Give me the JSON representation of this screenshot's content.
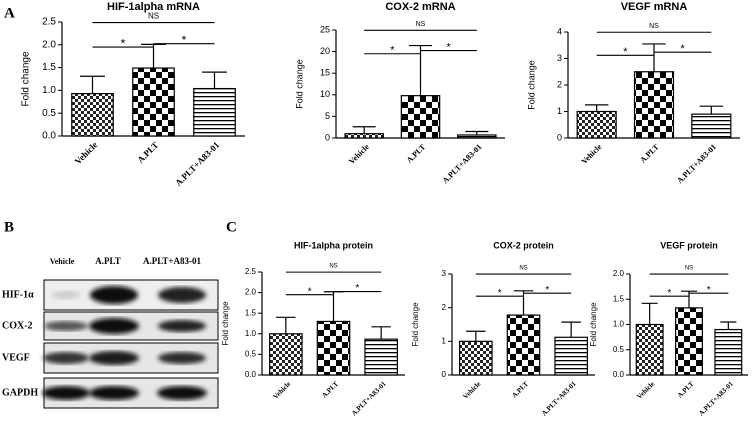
{
  "panels": {
    "a": "A",
    "b": "B",
    "c": "C"
  },
  "blot": {
    "lanes": [
      "Vehicle",
      "A.PLT",
      "A.PLT+A83-01"
    ],
    "proteins": [
      "HIF-1α",
      "COX-2",
      "VEGF",
      "GAPDH"
    ]
  },
  "chart_data": [
    {
      "type": "bar",
      "title": "HIF-1alpha mRNA",
      "ylabel": "Fold change",
      "categories": [
        "Vehicle",
        "A.PLT",
        "A.PLT+A83-01"
      ],
      "values": [
        0.93,
        1.49,
        1.04
      ],
      "errors": [
        0.38,
        0.52,
        0.36
      ],
      "ylim": [
        0,
        2.5
      ],
      "yticks": [
        {
          "value": 0,
          "label": "0.0"
        },
        0.5,
        {
          "value": 1,
          "label": "1.0"
        },
        1.5,
        {
          "value": 2,
          "label": "2.0"
        },
        2.5
      ],
      "annotations": [
        "*",
        "*",
        "NS"
      ]
    },
    {
      "type": "bar",
      "title": "COX-2 mRNA",
      "ylabel": "Fold change",
      "categories": [
        "Vehicle",
        "A.PLT",
        "A.PLT+A83-01"
      ],
      "values": [
        1.0,
        9.8,
        0.7
      ],
      "errors": [
        1.6,
        11.6,
        0.8
      ],
      "ylim": [
        0,
        25
      ],
      "yticks": [
        0,
        5,
        10,
        15,
        20,
        25
      ],
      "annotations": [
        "*",
        "*",
        "NS"
      ]
    },
    {
      "type": "bar",
      "title": "VEGF mRNA",
      "ylabel": "Fold change",
      "categories": [
        "Vehicle",
        "A.PLT",
        "A.PLT+A83-01"
      ],
      "values": [
        1.0,
        2.5,
        0.9
      ],
      "errors": [
        0.25,
        1.05,
        0.3
      ],
      "ylim": [
        0,
        4
      ],
      "yticks": [
        0,
        1,
        2,
        3,
        4
      ],
      "annotations": [
        "*",
        "*",
        "NS"
      ]
    },
    {
      "type": "bar",
      "title": "HIF-1alpha protein",
      "ylabel": "Fold change",
      "categories": [
        "Vehicle",
        "A.PLT",
        "A.PLT+A83-01"
      ],
      "values": [
        1.0,
        1.3,
        0.87
      ],
      "errors": [
        0.4,
        0.72,
        0.3
      ],
      "ylim": [
        0,
        2.5
      ],
      "yticks": [
        {
          "value": 0,
          "label": "0.0"
        },
        0.5,
        {
          "value": 1,
          "label": "1.0"
        },
        1.5,
        {
          "value": 2,
          "label": "2.0"
        },
        2.5
      ],
      "annotations": [
        "*",
        "*",
        "NS"
      ]
    },
    {
      "type": "bar",
      "title": "COX-2 protein",
      "ylabel": "Fold change",
      "categories": [
        "Vehicle",
        "A.PLT",
        "A.PLT+A83-01"
      ],
      "values": [
        1.0,
        1.78,
        1.12
      ],
      "errors": [
        0.3,
        0.72,
        0.45
      ],
      "ylim": [
        0,
        3
      ],
      "yticks": [
        0,
        1,
        2,
        3
      ],
      "annotations": [
        "*",
        "*",
        "NS"
      ]
    },
    {
      "type": "bar",
      "title": "VEGF protein",
      "ylabel": "Fold change",
      "categories": [
        "Vehicle",
        "A.PLT",
        "A.PLT+A83-01"
      ],
      "values": [
        1.0,
        1.33,
        0.9
      ],
      "errors": [
        0.42,
        0.33,
        0.15
      ],
      "ylim": [
        0,
        2
      ],
      "yticks": [
        {
          "value": 0,
          "label": "0.0"
        },
        0.5,
        {
          "value": 1,
          "label": "1.0"
        },
        1.5,
        {
          "value": 2,
          "label": "2.0"
        }
      ],
      "annotations": [
        "*",
        "*",
        "NS"
      ]
    }
  ]
}
